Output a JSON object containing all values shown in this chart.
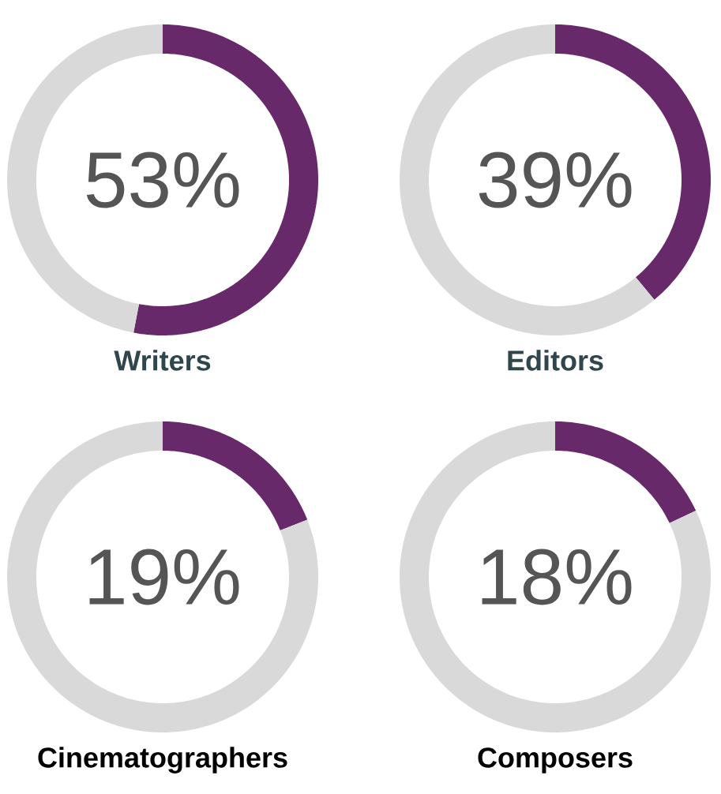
{
  "chart_data": [
    {
      "type": "donut",
      "title": "Writers",
      "categories": [
        null,
        null
      ],
      "values": [
        53,
        47
      ],
      "colors": [
        "#68296b",
        "#d9d9d9"
      ],
      "annotations": [
        "53%"
      ]
    },
    {
      "type": "donut",
      "title": "Editors",
      "categories": [
        null,
        null
      ],
      "values": [
        39,
        61
      ],
      "colors": [
        "#68296b",
        "#d9d9d9"
      ],
      "annotations": [
        "39%"
      ]
    },
    {
      "type": "donut",
      "title": "Cinematographers",
      "categories": [
        null,
        null
      ],
      "values": [
        19,
        81
      ],
      "colors": [
        "#68296b",
        "#d9d9d9"
      ],
      "annotations": [
        "19%"
      ]
    },
    {
      "type": "donut",
      "title": "Composers",
      "categories": [
        null,
        null
      ],
      "values": [
        18,
        82
      ],
      "colors": [
        "#68296b",
        "#d9d9d9"
      ],
      "annotations": [
        "18%"
      ]
    }
  ]
}
